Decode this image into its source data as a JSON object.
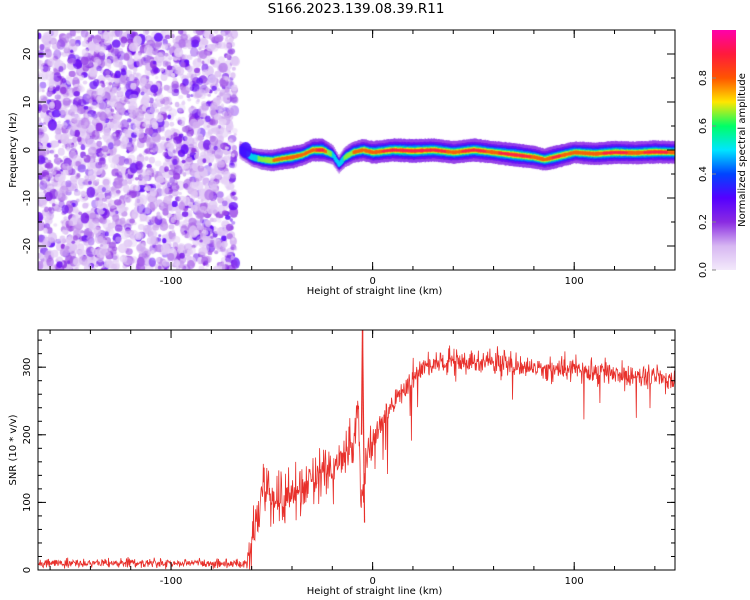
{
  "figure_title": "S166.2023.139.08.39.R11",
  "colors": {
    "snr_line": "#e8302b",
    "axis": "#000000",
    "colormap": [
      "#f3e9fb",
      "#d7b7f2",
      "#8a2be2",
      "#5500ff",
      "#0044ff",
      "#00e5ff",
      "#00ff66",
      "#ffe600",
      "#ff5500",
      "#ff1a3c",
      "#ff00aa"
    ]
  },
  "chart_data": [
    {
      "id": "spectrogram",
      "type": "heatmap",
      "title": "",
      "xlabel": "Height of straight line (km)",
      "ylabel": "Frequency (Hz)",
      "xlim": [
        -166,
        150
      ],
      "ylim": [
        -25,
        25
      ],
      "xticks": [
        -100,
        0,
        100
      ],
      "yticks": [
        -20,
        -10,
        0,
        10,
        20
      ],
      "colorbar": {
        "label": "Normalized spectral amplitude",
        "range": [
          0,
          1
        ],
        "ticks": [
          "0.0",
          "0.2",
          "0.4",
          "0.6",
          "0.8"
        ]
      },
      "noise_region_x": [
        -166,
        -68
      ],
      "ridge": {
        "x": [
          -66,
          -60,
          -55,
          -50,
          -45,
          -40,
          -35,
          -30,
          -25,
          -20,
          -17,
          -14,
          -10,
          -5,
          0,
          10,
          20,
          30,
          40,
          50,
          60,
          70,
          80,
          85,
          90,
          95,
          100,
          110,
          120,
          130,
          140,
          150
        ],
        "freq": [
          0.0,
          -1.5,
          -2.0,
          -2.2,
          -1.8,
          -1.5,
          -1.0,
          0.0,
          0.0,
          -1.0,
          -3.0,
          -1.5,
          -0.5,
          0.0,
          -0.5,
          0.0,
          -0.2,
          0.0,
          -0.5,
          0.0,
          -0.5,
          -1.0,
          -1.5,
          -2.0,
          -1.5,
          -1.0,
          -0.5,
          -0.8,
          -0.5,
          -0.6,
          -0.4,
          -0.5
        ],
        "amplitude": [
          0.4,
          0.6,
          0.7,
          0.8,
          0.85,
          0.9,
          0.8,
          0.9,
          0.95,
          0.6,
          0.5,
          0.7,
          0.8,
          0.85,
          0.9,
          0.95,
          1.0,
          0.95,
          0.9,
          0.95,
          0.9,
          1.0,
          0.9,
          0.85,
          0.95,
          0.9,
          0.85,
          0.9,
          0.95,
          0.9,
          0.95,
          0.9
        ]
      }
    },
    {
      "id": "snr",
      "type": "line",
      "title": "",
      "xlabel": "Height of straight line (km)",
      "ylabel": "SNR (10 * v/v)",
      "xlim": [
        -166,
        150
      ],
      "ylim": [
        0,
        355
      ],
      "xticks": [
        -100,
        0,
        100
      ],
      "yticks": [
        0,
        100,
        200,
        300
      ],
      "envelope": {
        "x": [
          -166,
          -130,
          -100,
          -80,
          -62,
          -58,
          -55,
          -52,
          -48,
          -45,
          -40,
          -35,
          -30,
          -25,
          -20,
          -15,
          -12,
          -10,
          -8,
          -7,
          -6,
          -5,
          -3,
          0,
          5,
          10,
          20,
          30,
          40,
          50,
          60,
          70,
          80,
          90,
          100,
          110,
          120,
          130,
          140,
          150
        ],
        "y": [
          10,
          10,
          10,
          10,
          10,
          60,
          110,
          120,
          100,
          105,
          115,
          125,
          130,
          140,
          150,
          165,
          175,
          185,
          210,
          240,
          110,
          100,
          170,
          195,
          220,
          245,
          285,
          305,
          310,
          310,
          308,
          305,
          300,
          298,
          295,
          293,
          290,
          288,
          285,
          282
        ]
      },
      "spike": {
        "x": -5,
        "y": 355
      }
    }
  ]
}
